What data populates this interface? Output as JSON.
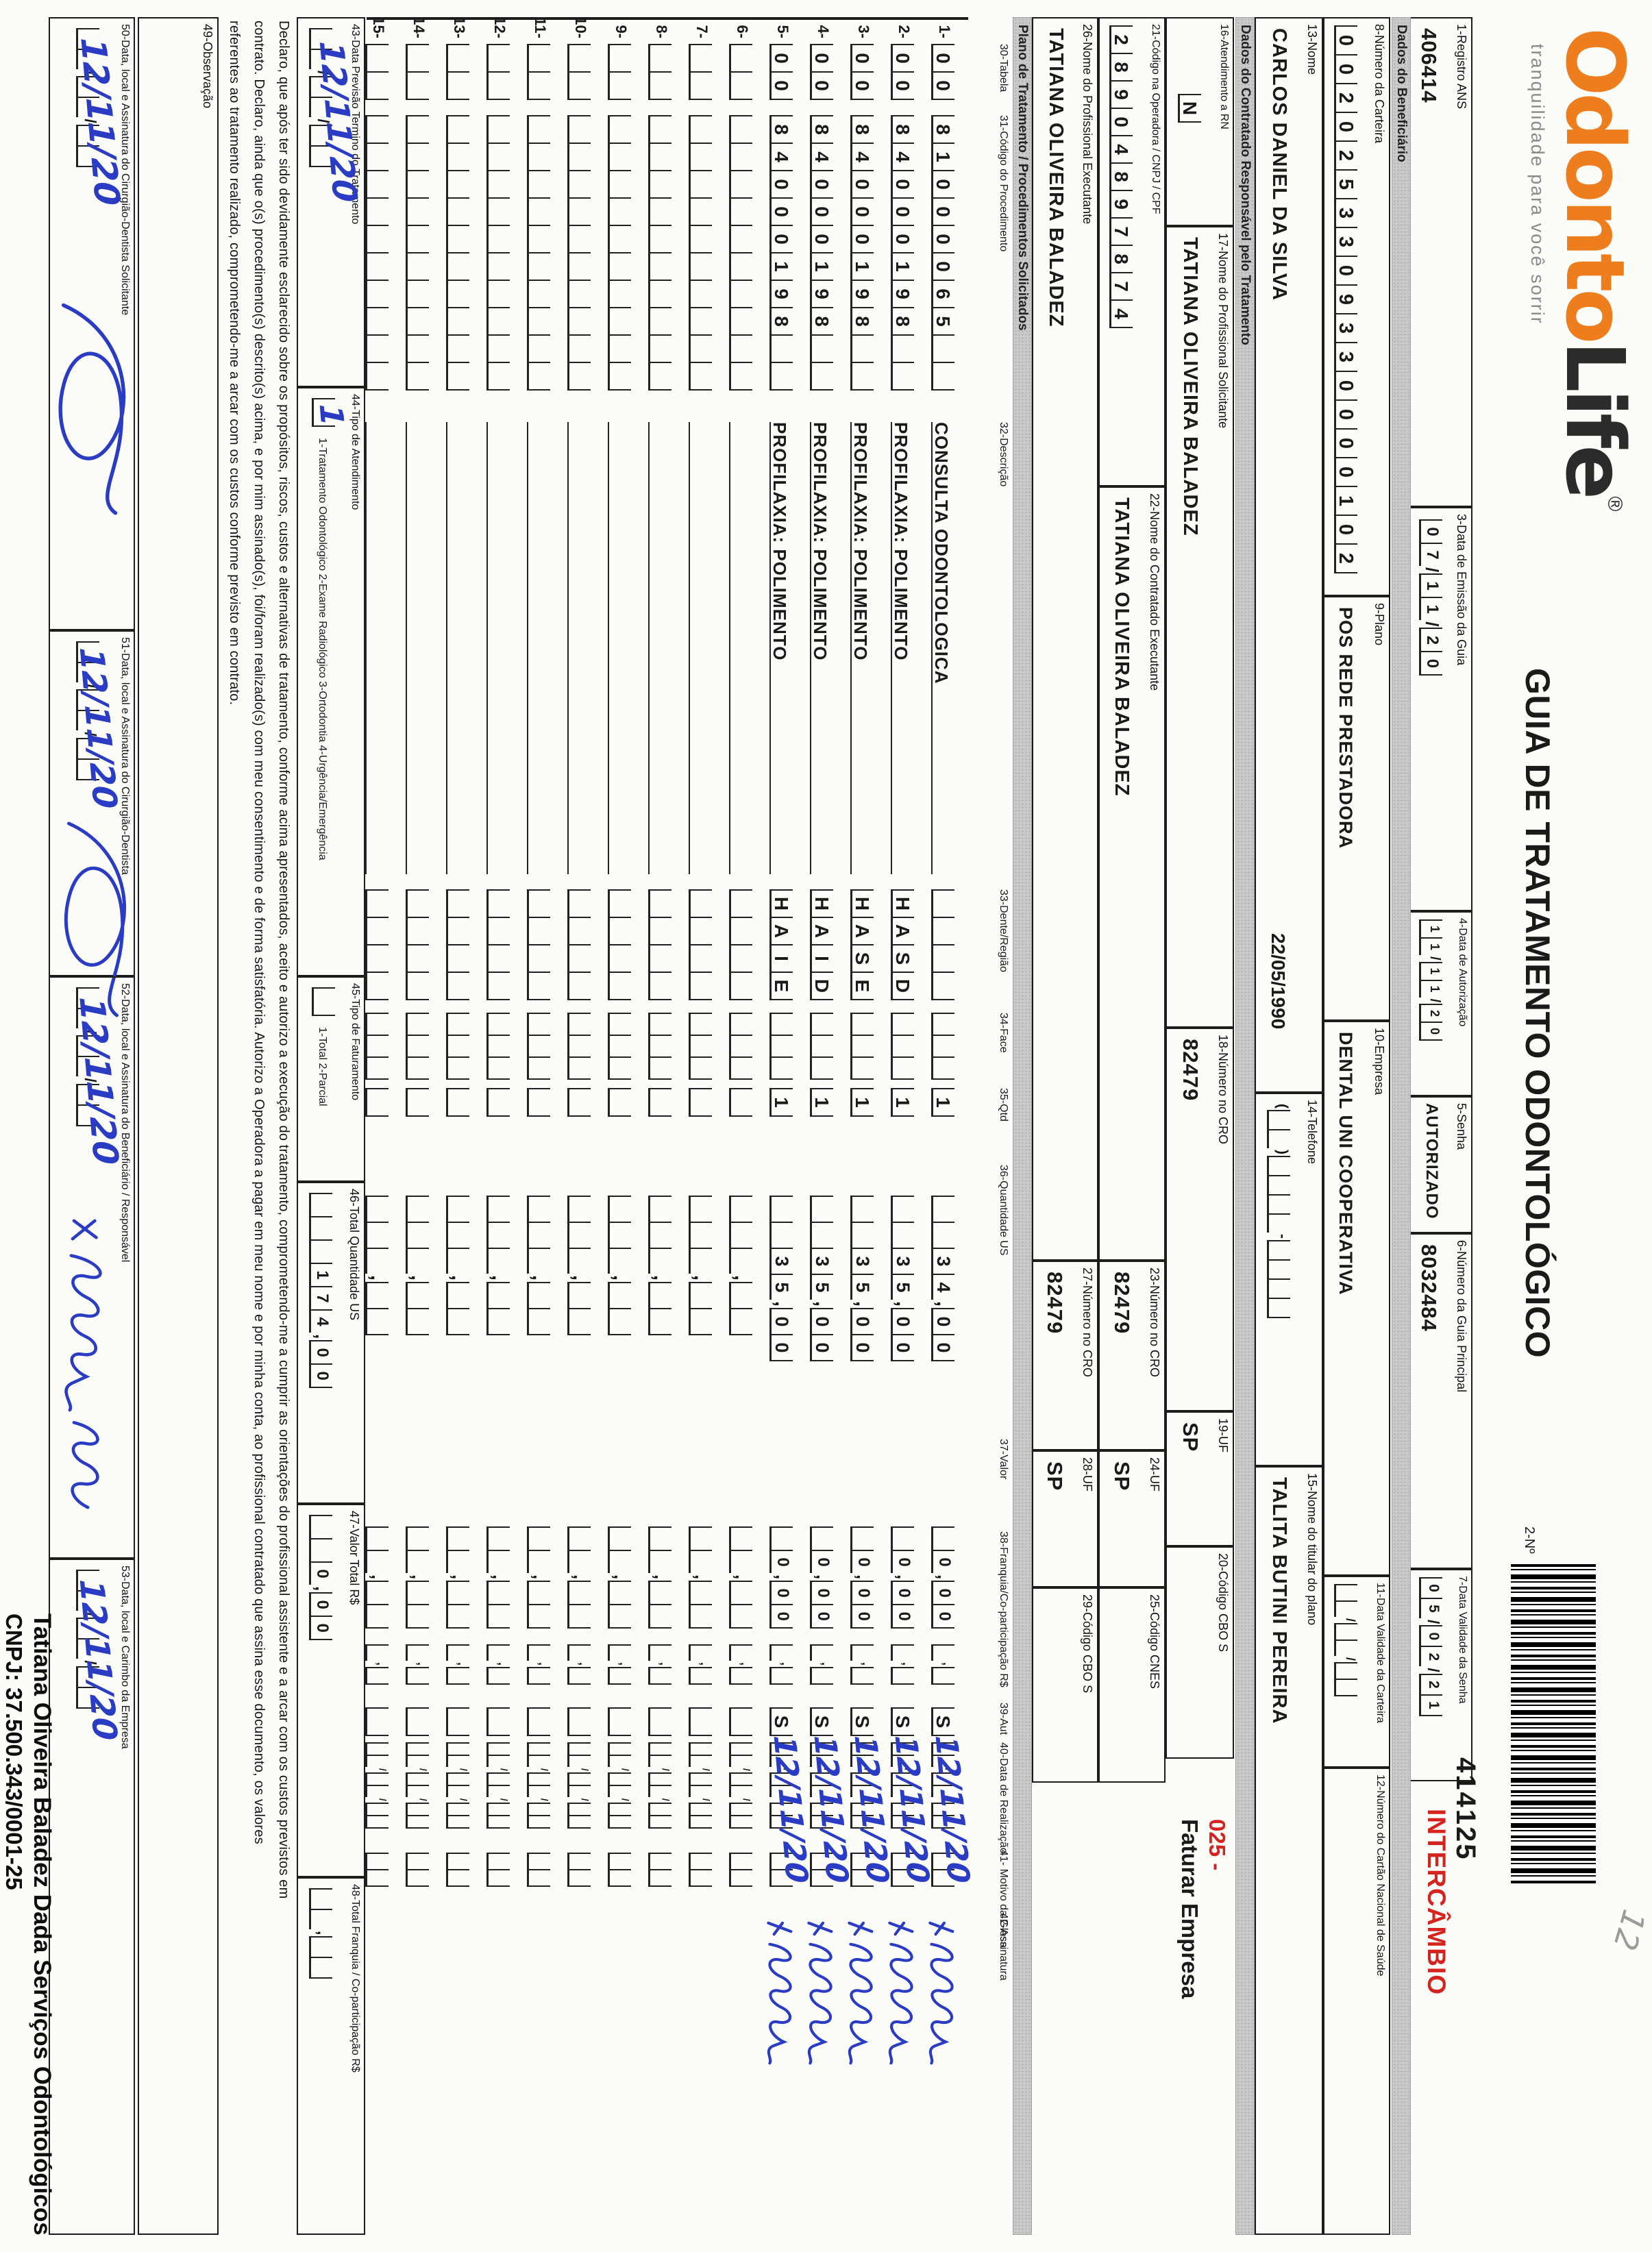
{
  "logo": {
    "part1": "Odonto",
    "part2": "Life",
    "reg": "®",
    "tagline": "tranquilidade para você sorrir"
  },
  "header": {
    "title": "GUIA DE TRATAMENTO ODONTOLÓGICO",
    "num_label": "2-Nº",
    "barcode_number": "414125",
    "barcode_tag": "INTERCÂMBIO",
    "pencil_note": "12"
  },
  "sections": {
    "beneficiario": "Dados do Beneficiário",
    "contratado": "Dados do Contratado Responsável pelo Tratamento",
    "plano": "Plano de Tratamento / Procedimentos Solicitados"
  },
  "fields": {
    "f1": {
      "label": "1-Registro ANS",
      "value": "406414"
    },
    "f3": {
      "label": "3-Data de Emissão da Guia",
      "value": "07/11/20"
    },
    "f4": {
      "label": "4-Data de Autorização",
      "value": "11/11/20"
    },
    "f5": {
      "label": "5-Senha",
      "value": "AUTORIZADO"
    },
    "f6": {
      "label": "6-Número da Guia Principal",
      "value": "8032484"
    },
    "f7": {
      "label": "7-Data Validade da Senha",
      "value": "05/02/21"
    },
    "f8": {
      "label": "8-Número da Carteira",
      "value": "0020253309330000102"
    },
    "f9": {
      "label": "9-Plano",
      "value": "POS REDE PRESTADORA"
    },
    "f10": {
      "label": "10-Empresa",
      "value": "DENTAL UNI COOPERATIVA"
    },
    "f11": {
      "label": "11-Data Validade da Carteira",
      "value": "  /  /  "
    },
    "f12": {
      "label": "12-Número do Cartão Nacional de Saúde",
      "value": ""
    },
    "f13": {
      "label": "13-Nome",
      "value": "CARLOS DANIEL DA SILVA",
      "birth_date": "22/05/1990"
    },
    "f14": {
      "label": "14-Telefone",
      "value": "(  )    -    "
    },
    "f15": {
      "label": "15-Nome do titular do plano",
      "value": "TALITA BUTINI PEREIRA"
    },
    "f16": {
      "label": "16-Atendimento a RN",
      "value": "N"
    },
    "f17": {
      "label": "17-Nome do Profissional Solicitante",
      "value": "TATIANA OLIVEIRA BALADEZ"
    },
    "f18": {
      "label": "18-Número no CRO",
      "value": "82479"
    },
    "f19": {
      "label": "19-UF",
      "value": "SP"
    },
    "f20": {
      "label": "20-Código CBO S",
      "value": ""
    },
    "f21": {
      "label": "21-Código na Operadora / CNPJ / CPF",
      "value": "28904897874"
    },
    "f22": {
      "label": "22-Nome do Contratado Executante",
      "value": "TATIANA OLIVEIRA BALADEZ"
    },
    "f23": {
      "label": "23-Número no CRO",
      "value": "82479"
    },
    "f24": {
      "label": "24-UF",
      "value": "SP"
    },
    "f25": {
      "label": "25-Código CNES",
      "value": ""
    },
    "f26": {
      "label": "26-Nome do Profissional Executante",
      "value": "TATIANA OLIVEIRA BALADEZ"
    },
    "f27": {
      "label": "27-Número no CRO",
      "value": "82479"
    },
    "f28": {
      "label": "28-UF",
      "value": "SP"
    },
    "f29": {
      "label": "29-Código CBO S",
      "value": ""
    }
  },
  "annotations": {
    "cbo_code": "025 -",
    "cbo_note": "Faturar Empresa"
  },
  "table": {
    "headers": [
      "30-Tabela",
      "31-Código do Procedimento",
      "32-Descrição",
      "33-Dente/Região",
      "34-Face",
      "35-Qtd",
      "36-Quantidade US",
      "37-Valor",
      "38-Franquia/Co-participação R$",
      "39-Aut",
      "40-Data de Realização",
      "41- Motivo da Glosa",
      "42-Assinatura"
    ],
    "rows": [
      {
        "num": "1-",
        "tabela": "00",
        "codigo": "81000065  ",
        "desc": "CONSULTA ODONTOLOGICA",
        "dente": "    ",
        "face": "   ",
        "qtd": "1",
        "us": "  34,00",
        "valor": " 0,00",
        "franquia": " , ",
        "aut": "S",
        "data": "  /  /  ",
        "data_hw": "12/11/20",
        "signed": true
      },
      {
        "num": "2-",
        "tabela": "00",
        "codigo": "84000198  ",
        "desc": "PROFILAXIA: POLIMENTO",
        "dente": "HASD",
        "face": "   ",
        "qtd": "1",
        "us": "  35,00",
        "valor": " 0,00",
        "franquia": " , ",
        "aut": "S",
        "data": "  /  /  ",
        "data_hw": "12/11/20",
        "signed": true
      },
      {
        "num": "3-",
        "tabela": "00",
        "codigo": "84000198  ",
        "desc": "PROFILAXIA: POLIMENTO",
        "dente": "HASE",
        "face": "   ",
        "qtd": "1",
        "us": "  35,00",
        "valor": " 0,00",
        "franquia": " , ",
        "aut": "S",
        "data": "  /  /  ",
        "data_hw": "12/11/20",
        "signed": true
      },
      {
        "num": "4-",
        "tabela": "00",
        "codigo": "84000198  ",
        "desc": "PROFILAXIA: POLIMENTO",
        "dente": "HAID",
        "face": "   ",
        "qtd": "1",
        "us": "  35,00",
        "valor": " 0,00",
        "franquia": " , ",
        "aut": "S",
        "data": "  /  /  ",
        "data_hw": "12/11/20",
        "signed": true
      },
      {
        "num": "5-",
        "tabela": "00",
        "codigo": "84000198  ",
        "desc": "PROFILAXIA: POLIMENTO",
        "dente": "HAIE",
        "face": "   ",
        "qtd": "1",
        "us": "  35,00",
        "valor": " 0,00",
        "franquia": " , ",
        "aut": "S",
        "data": "  /  /  ",
        "data_hw": "12/11/20",
        "signed": true
      },
      {
        "num": "6-",
        "tabela": "  ",
        "codigo": "          ",
        "desc": "",
        "dente": "    ",
        "face": "   ",
        "qtd": " ",
        "us": "   ,  ",
        "valor": "  ,  ",
        "franquia": " , ",
        "aut": " ",
        "data": "  /  /  ",
        "data_hw": "",
        "signed": false
      },
      {
        "num": "7-",
        "tabela": "  ",
        "codigo": "          ",
        "desc": "",
        "dente": "    ",
        "face": "   ",
        "qtd": " ",
        "us": "   ,  ",
        "valor": "  ,  ",
        "franquia": " , ",
        "aut": " ",
        "data": "  /  /  ",
        "data_hw": "",
        "signed": false
      },
      {
        "num": "8-",
        "tabela": "  ",
        "codigo": "          ",
        "desc": "",
        "dente": "    ",
        "face": "   ",
        "qtd": " ",
        "us": "   ,  ",
        "valor": "  ,  ",
        "franquia": " , ",
        "aut": " ",
        "data": "  /  /  ",
        "data_hw": "",
        "signed": false
      },
      {
        "num": "9-",
        "tabela": "  ",
        "codigo": "          ",
        "desc": "",
        "dente": "    ",
        "face": "   ",
        "qtd": " ",
        "us": "   ,  ",
        "valor": "  ,  ",
        "franquia": " , ",
        "aut": " ",
        "data": "  /  /  ",
        "data_hw": "",
        "signed": false
      },
      {
        "num": "10-",
        "tabela": "  ",
        "codigo": "          ",
        "desc": "",
        "dente": "    ",
        "face": "   ",
        "qtd": " ",
        "us": "   ,  ",
        "valor": "  ,  ",
        "franquia": " , ",
        "aut": " ",
        "data": "  /  /  ",
        "data_hw": "",
        "signed": false
      },
      {
        "num": "11-",
        "tabela": "  ",
        "codigo": "          ",
        "desc": "",
        "dente": "    ",
        "face": "   ",
        "qtd": " ",
        "us": "   ,  ",
        "valor": "  ,  ",
        "franquia": " , ",
        "aut": " ",
        "data": "  /  /  ",
        "data_hw": "",
        "signed": false
      },
      {
        "num": "12-",
        "tabela": "  ",
        "codigo": "          ",
        "desc": "",
        "dente": "    ",
        "face": "   ",
        "qtd": " ",
        "us": "   ,  ",
        "valor": "  ,  ",
        "franquia": " , ",
        "aut": " ",
        "data": "  /  /  ",
        "data_hw": "",
        "signed": false
      },
      {
        "num": "13-",
        "tabela": "  ",
        "codigo": "          ",
        "desc": "",
        "dente": "    ",
        "face": "   ",
        "qtd": " ",
        "us": "   ,  ",
        "valor": "  ,  ",
        "franquia": " , ",
        "aut": " ",
        "data": "  /  /  ",
        "data_hw": "",
        "signed": false
      },
      {
        "num": "14-",
        "tabela": "  ",
        "codigo": "          ",
        "desc": "",
        "dente": "    ",
        "face": "   ",
        "qtd": " ",
        "us": "   ,  ",
        "valor": "  ,  ",
        "franquia": " , ",
        "aut": " ",
        "data": "  /  /  ",
        "data_hw": "",
        "signed": false
      },
      {
        "num": "15-",
        "tabela": "  ",
        "codigo": "          ",
        "desc": "",
        "dente": "    ",
        "face": "   ",
        "qtd": " ",
        "us": "   ,  ",
        "valor": "  ,  ",
        "franquia": " , ",
        "aut": " ",
        "data": "  /  /  ",
        "data_hw": "",
        "signed": false
      }
    ]
  },
  "totals": {
    "f43": {
      "label": "43-Data Previsão Termino do Tratamento",
      "cells": "  /  /  ",
      "hw": "12/11/20"
    },
    "f44": {
      "label": "44-Tipo de Atendimento",
      "cells": " ",
      "hw": "1",
      "legend": "1-Tratamento Odontológico 2-Exame Radiológico 3-Ortodontia 4-Urgência/Emergência"
    },
    "f45": {
      "label": "45-Tipo de Faturamento",
      "cells": " ",
      "legend": "1-Total 2-Parcial"
    },
    "f46": {
      "label": "46-Total Quantidade US",
      "cells": "   174,00"
    },
    "f47": {
      "label": "47-Valor Total R$",
      "cells": "  0,00"
    },
    "f48": {
      "label": "48-Total Franquia / Co-participação R$",
      "cells": "  ,  "
    }
  },
  "declaration": {
    "line1": "Declaro, que após ter sido devidamente esclarecido sobre os propósitos, riscos, custos e alternativas de tratamento, conforme acima apresentados, aceito e autorizo a execução do tratamento, comprometendo-me a cumprir as orientações do profissional assistente e a arcar com os custos previstos em",
    "line2": "contrato. Declaro, ainda que o(s) procedimento(s) descrito(s) acima, e por mim assinado(s), foi/foram realizado(s) com meu consentimento e de forma satisfatória. Autorizo a Operadora a pagar em meu nome e por minha conta, ao profissional contratado que assina esse documento, os valores",
    "line3": "referentes ao tratamento realizado, comprometendo-me a arcar com os custos conforme previsto em contrato."
  },
  "observacao_label": "49-Observação",
  "signatures": {
    "f50": {
      "label": "50-Data, local e Assinatura do Cirurgião-Dentista Solicitante",
      "cells": "  /  /  ",
      "date_hw": "12/11/20"
    },
    "f51": {
      "label": "51-Data, local e Assinatura do Cirurgião-Dentista",
      "cells": "  /  /  ",
      "date_hw": "12/11/20"
    },
    "f52": {
      "label": "52-Data, local e Assinatura do Beneficiário / Responsável",
      "cells": "  /  /  ",
      "date_hw": "12/11/20",
      "name_hw": "Carlos Daniel"
    },
    "f53": {
      "label": "53-Data, local e Carimbo da Empresa",
      "cells": "  /  /  ",
      "date_hw": "12/11/20"
    },
    "stamp_line1": "Tatiana Oliveira Baladez Dada Serviços Odontológicos",
    "stamp_line2": "CNPJ: 37.500.343/0001-25"
  },
  "colors": {
    "accent_orange": "#ee7d1e",
    "stamp_red": "#d42420",
    "ink_blue": "#2b3cc4",
    "strip_gray": "#c9c9c9"
  }
}
